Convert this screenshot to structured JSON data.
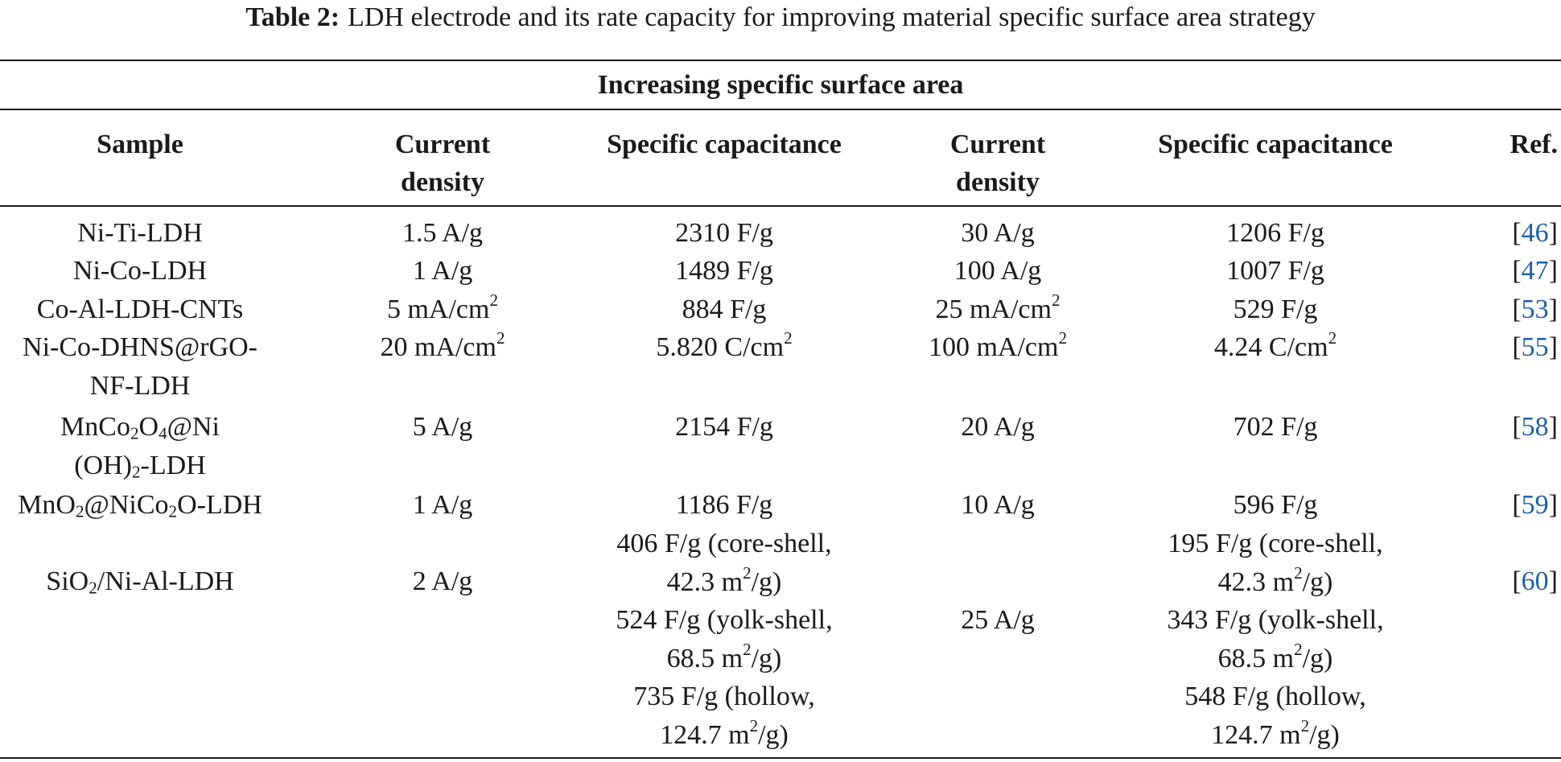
{
  "caption": {
    "label": "Table 2:",
    "text": "LDH electrode and its rate capacity for improving material specific surface area strategy"
  },
  "group_header": "Increasing specific surface area",
  "columns": {
    "sample": "Sample",
    "current_density_1a": "Current",
    "current_density_1b": "density",
    "specific_capacitance_1": "Specific capacitance",
    "current_density_2a": "Current",
    "current_density_2b": "density",
    "specific_capacitance_2": "Specific capacitance",
    "ref": "Ref."
  },
  "rows": [
    {
      "sample": "Ni-Ti-LDH",
      "cd1": "1.5 A/g",
      "sc1": "2310 F/g",
      "cd2": "30 A/g",
      "sc2": "1206 F/g",
      "ref": "46"
    },
    {
      "sample": "Ni-Co-LDH",
      "cd1": "1 A/g",
      "sc1": "1489 F/g",
      "cd2": "100 A/g",
      "sc2": "1007 F/g",
      "ref": "47"
    },
    {
      "sample": "Co-Al-LDH-CNTs",
      "cd1": "5 mA/cm",
      "cd1_sup": "2",
      "sc1": "884 F/g",
      "cd2": "25 mA/cm",
      "cd2_sup": "2",
      "sc2": "529 F/g",
      "ref": "53"
    },
    {
      "sample_a": "Ni-Co-DHNS@rGO-",
      "sample_b": "NF-LDH",
      "cd1": "20 mA/cm",
      "cd1_sup": "2",
      "sc1": "5.820 C/cm",
      "sc1_sup": "2",
      "cd2": "100 mA/cm",
      "cd2_sup": "2",
      "sc2": "4.24 C/cm",
      "sc2_sup": "2",
      "ref": "55"
    },
    {
      "sample_a1": "MnCo",
      "sample_a_sub1": "2",
      "sample_a2": "O",
      "sample_a_sub2": "4",
      "sample_a3": "@Ni",
      "sample_b1": "(OH)",
      "sample_b_sub": "2",
      "sample_b2": "-LDH",
      "cd1": "5 A/g",
      "sc1": "2154 F/g",
      "cd2": "20 A/g",
      "sc2": "702 F/g",
      "ref": "58"
    },
    {
      "sample1": "MnO",
      "sample_sub1": "2",
      "sample2": "@NiCo",
      "sample_sub2": "2",
      "sample3": "O-LDH",
      "cd1": "1 A/g",
      "sc1": "1186 F/g",
      "cd2": "10 A/g",
      "sc2": "596 F/g",
      "ref": "59"
    },
    {
      "sample1": "SiO",
      "sample_sub": "2",
      "sample2": "/Ni-Al-LDH",
      "cd1": "2 A/g",
      "cd2": "25 A/g",
      "ref": "60",
      "sc1": [
        {
          "a": "406 F/g (core-shell,",
          "b": "42.3 m",
          "sup": "2",
          "c": "/g)"
        },
        {
          "a": "524 F/g (yolk-shell,",
          "b": "68.5 m",
          "sup": "2",
          "c": "/g)"
        },
        {
          "a": "735 F/g (hollow,",
          "b": "124.7 m",
          "sup": "2",
          "c": "/g)"
        }
      ],
      "sc2": [
        {
          "a": "195 F/g (core-shell,",
          "b": "42.3 m",
          "sup": "2",
          "c": "/g)"
        },
        {
          "a": "343 F/g (yolk-shell,",
          "b": "68.5 m",
          "sup": "2",
          "c": "/g)"
        },
        {
          "a": "548 F/g (hollow,",
          "b": "124.7 m",
          "sup": "2",
          "c": "/g)"
        }
      ]
    }
  ],
  "bracket_open": "[",
  "bracket_close": "]"
}
